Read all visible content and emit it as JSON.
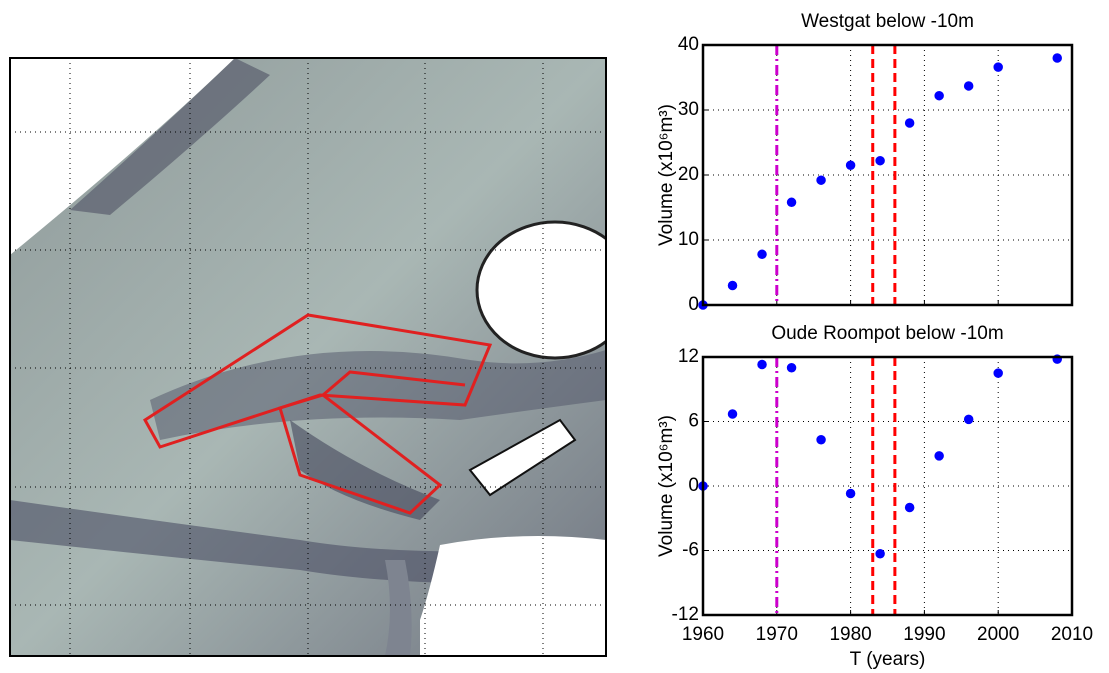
{
  "chart_data": [
    {
      "type": "scatter",
      "title": "Westgat below -10m",
      "ylabel": "Volume (x10⁶m³)",
      "x": [
        1960,
        1964,
        1968,
        1972,
        1976,
        1980,
        1984,
        1988,
        1992,
        1996,
        2000,
        2008
      ],
      "values": [
        0,
        3,
        7.8,
        15.8,
        19.2,
        21.5,
        22.2,
        28,
        32.2,
        33.7,
        36.6,
        38
      ],
      "color": "#0000ff",
      "xlim": [
        1960,
        2010
      ],
      "xticks": [
        1960,
        1970,
        1980,
        1990,
        2000,
        2010
      ],
      "show_xtick_labels": false,
      "ylim": [
        0,
        40
      ],
      "yticks": [
        0,
        10,
        20,
        30,
        40
      ],
      "grid": true,
      "vlines": [
        {
          "x": 1970,
          "color": "#cc00cc",
          "style": "dashdot"
        },
        {
          "x": 1983,
          "color": "#ff0000",
          "style": "dashed"
        },
        {
          "x": 1986,
          "color": "#ff0000",
          "style": "dashed"
        }
      ]
    },
    {
      "type": "scatter",
      "title": "Oude Roompot below -10m",
      "ylabel": "Volume (x10⁶m³)",
      "xlabel": "T (years)",
      "x": [
        1960,
        1964,
        1968,
        1972,
        1976,
        1980,
        1984,
        1988,
        1992,
        1996,
        2000,
        2008
      ],
      "values": [
        0,
        6.7,
        11.3,
        11,
        4.3,
        -0.7,
        -6.3,
        -2,
        2.8,
        6.2,
        10.5,
        11.8
      ],
      "color": "#0000ff",
      "xlim": [
        1960,
        2010
      ],
      "xticks": [
        1960,
        1970,
        1980,
        1990,
        2000,
        2010
      ],
      "show_xtick_labels": true,
      "ylim": [
        -12,
        12
      ],
      "yticks": [
        -12,
        -6,
        0,
        6,
        12
      ],
      "grid": true,
      "vlines": [
        {
          "x": 1970,
          "color": "#cc00cc",
          "style": "dashdot"
        },
        {
          "x": 1983,
          "color": "#ff0000",
          "style": "dashed"
        },
        {
          "x": 1986,
          "color": "#ff0000",
          "style": "dashed"
        }
      ]
    }
  ]
}
